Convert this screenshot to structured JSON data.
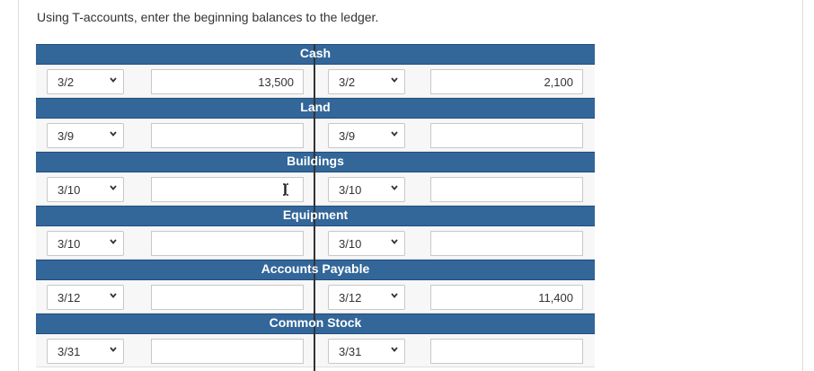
{
  "instruction": "Using T-accounts, enter the beginning balances to the ledger.",
  "accounts": [
    {
      "name": "Cash",
      "debit_date": "3/2",
      "debit_amount": "13,500",
      "credit_date": "3/2",
      "credit_amount": "2,100"
    },
    {
      "name": "Land",
      "debit_date": "3/9",
      "debit_amount": "",
      "credit_date": "3/9",
      "credit_amount": ""
    },
    {
      "name": "Buildings",
      "debit_date": "3/10",
      "debit_amount": "",
      "credit_date": "3/10",
      "credit_amount": ""
    },
    {
      "name": "Equipment",
      "debit_date": "3/10",
      "debit_amount": "",
      "credit_date": "3/10",
      "credit_amount": ""
    },
    {
      "name": "Accounts Payable",
      "debit_date": "3/12",
      "debit_amount": "",
      "credit_date": "3/12",
      "credit_amount": "11,400"
    },
    {
      "name": "Common Stock",
      "debit_date": "3/31",
      "debit_amount": "",
      "credit_date": "3/31",
      "credit_amount": ""
    }
  ],
  "colors": {
    "header": "#336699",
    "header_text": "#ffffff",
    "row_bg": "#f7f7f7",
    "divider": "#333333"
  },
  "icons": {
    "dropdown": "chevron-down-icon",
    "cursor": "text-cursor-icon"
  }
}
